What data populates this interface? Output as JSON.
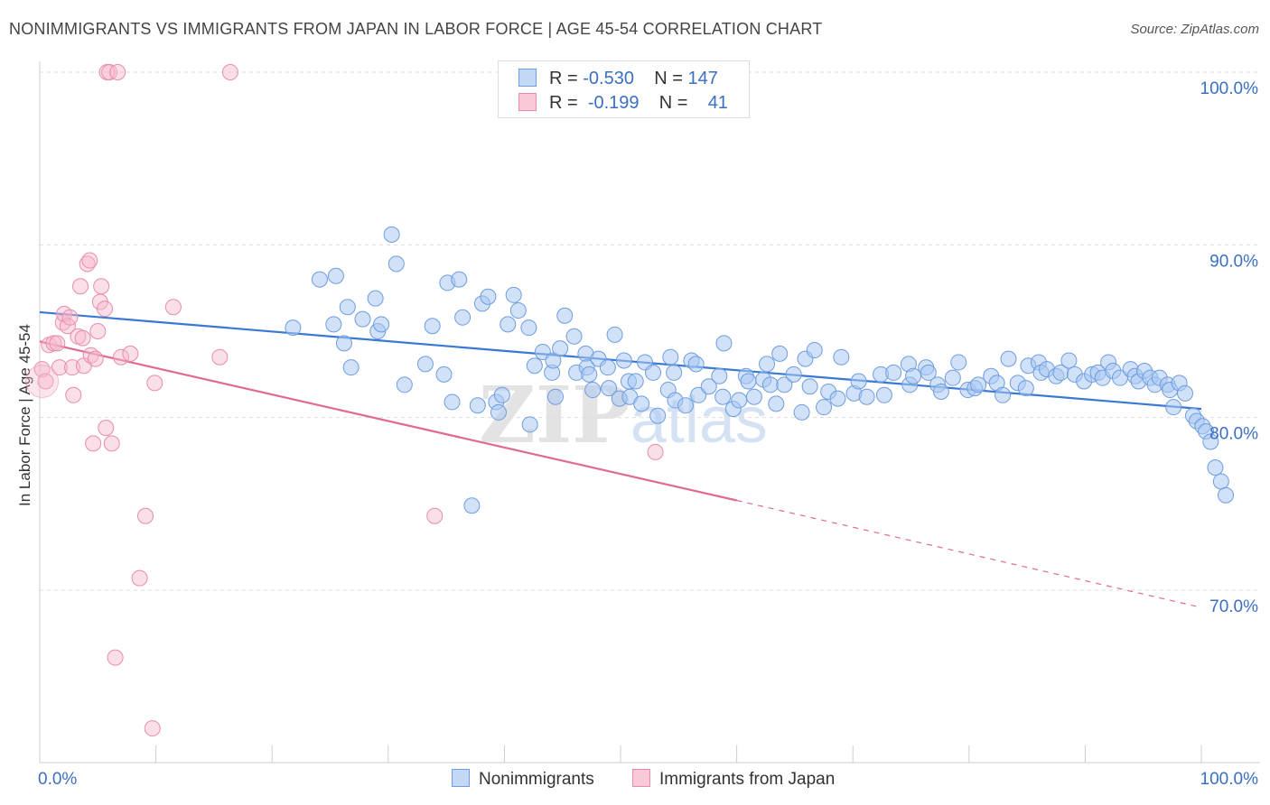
{
  "title": "NONIMMIGRANTS VS IMMIGRANTS FROM JAPAN IN LABOR FORCE | AGE 45-54 CORRELATION CHART",
  "source": "Source: ZipAtlas.com",
  "colors": {
    "blue": "#3a78d6",
    "blue_fill": "#a9c8f2",
    "pink": "#e06a93",
    "pink_fill": "#f6b8cb",
    "axis_label": "#3a6fc4"
  },
  "legend_top": {
    "rows": [
      {
        "r_label": "R =",
        "r_value": "-0.530",
        "n_label": "N =",
        "n_value": "147"
      },
      {
        "r_label": "R =",
        "r_value": "-0.199",
        "n_label": "N =",
        "n_value": "41"
      }
    ]
  },
  "legend_bottom": {
    "series1": "Nonimmigrants",
    "series2": "Immigrants from Japan"
  },
  "chart_data": {
    "type": "scatter",
    "title": "NONIMMIGRANTS VS IMMIGRANTS FROM JAPAN IN LABOR FORCE | AGE 45-54 CORRELATION CHART",
    "xlabel": "",
    "ylabel": "In Labor Force | Age 45-54",
    "xlim": [
      0,
      100
    ],
    "ylim": [
      60,
      100
    ],
    "x_tick_labels": [
      "0.0%",
      "100.0%"
    ],
    "y_tick_labels": [
      "100.0%",
      "90.0%",
      "80.0%",
      "70.0%"
    ],
    "y_ticks": [
      100,
      90,
      80,
      70
    ],
    "watermark": "ZIPatlas",
    "series": [
      {
        "name": "Nonimmigrants",
        "color": "#3a78d6",
        "trend": {
          "x0": 0,
          "y0": 86.1,
          "x1": 100,
          "y1": 80.5
        },
        "points": [
          [
            21.8,
            85.2
          ],
          [
            24.1,
            88.0
          ],
          [
            25.3,
            85.4
          ],
          [
            25.5,
            88.2
          ],
          [
            26.2,
            84.3
          ],
          [
            26.5,
            86.4
          ],
          [
            26.8,
            82.9
          ],
          [
            27.8,
            85.7
          ],
          [
            28.9,
            86.9
          ],
          [
            29.1,
            85.0
          ],
          [
            29.4,
            85.4
          ],
          [
            30.3,
            90.6
          ],
          [
            30.7,
            88.9
          ],
          [
            31.4,
            81.9
          ],
          [
            33.2,
            83.1
          ],
          [
            33.8,
            85.3
          ],
          [
            34.8,
            82.5
          ],
          [
            35.1,
            87.8
          ],
          [
            35.5,
            80.9
          ],
          [
            36.1,
            88.0
          ],
          [
            36.4,
            85.8
          ],
          [
            37.7,
            80.7
          ],
          [
            38.1,
            86.6
          ],
          [
            38.6,
            87.0
          ],
          [
            39.3,
            80.9
          ],
          [
            39.5,
            80.3
          ],
          [
            39.8,
            81.3
          ],
          [
            40.3,
            85.4
          ],
          [
            40.8,
            87.1
          ],
          [
            41.2,
            86.2
          ],
          [
            42.1,
            85.2
          ],
          [
            42.2,
            79.6
          ],
          [
            42.6,
            83.0
          ],
          [
            43.3,
            83.8
          ],
          [
            44.1,
            82.6
          ],
          [
            44.2,
            83.3
          ],
          [
            44.4,
            81.2
          ],
          [
            44.8,
            84.0
          ],
          [
            45.2,
            85.9
          ],
          [
            46.0,
            84.7
          ],
          [
            46.2,
            82.6
          ],
          [
            47.0,
            83.7
          ],
          [
            47.1,
            82.9
          ],
          [
            47.3,
            82.5
          ],
          [
            47.6,
            81.6
          ],
          [
            48.1,
            83.4
          ],
          [
            48.9,
            82.9
          ],
          [
            49.0,
            81.7
          ],
          [
            49.5,
            84.8
          ],
          [
            49.9,
            81.1
          ],
          [
            50.3,
            83.3
          ],
          [
            50.7,
            82.1
          ],
          [
            50.8,
            81.2
          ],
          [
            51.3,
            82.1
          ],
          [
            51.8,
            80.8
          ],
          [
            52.1,
            83.2
          ],
          [
            52.8,
            82.6
          ],
          [
            53.2,
            80.1
          ],
          [
            54.1,
            81.6
          ],
          [
            54.3,
            83.5
          ],
          [
            54.6,
            82.6
          ],
          [
            54.7,
            81.0
          ],
          [
            55.6,
            80.7
          ],
          [
            56.1,
            83.3
          ],
          [
            56.5,
            83.1
          ],
          [
            56.7,
            81.3
          ],
          [
            57.6,
            81.8
          ],
          [
            58.5,
            82.4
          ],
          [
            58.8,
            81.2
          ],
          [
            59.7,
            80.5
          ],
          [
            60.2,
            81.0
          ],
          [
            60.8,
            82.4
          ],
          [
            61.0,
            82.1
          ],
          [
            61.5,
            81.2
          ],
          [
            62.3,
            82.2
          ],
          [
            62.6,
            83.1
          ],
          [
            62.9,
            81.9
          ],
          [
            63.4,
            80.8
          ],
          [
            63.7,
            83.7
          ],
          [
            64.1,
            81.9
          ],
          [
            64.9,
            82.5
          ],
          [
            65.6,
            80.3
          ],
          [
            65.9,
            83.4
          ],
          [
            66.3,
            81.8
          ],
          [
            66.7,
            83.9
          ],
          [
            67.5,
            80.6
          ],
          [
            67.9,
            81.5
          ],
          [
            68.7,
            81.1
          ],
          [
            69.0,
            83.5
          ],
          [
            70.1,
            81.4
          ],
          [
            70.5,
            82.1
          ],
          [
            71.2,
            81.2
          ],
          [
            72.4,
            82.5
          ],
          [
            72.7,
            81.3
          ],
          [
            73.5,
            82.6
          ],
          [
            74.8,
            83.1
          ],
          [
            74.9,
            81.9
          ],
          [
            75.2,
            82.4
          ],
          [
            76.3,
            82.9
          ],
          [
            76.5,
            82.6
          ],
          [
            77.3,
            81.9
          ],
          [
            77.6,
            81.5
          ],
          [
            78.6,
            82.3
          ],
          [
            79.1,
            83.2
          ],
          [
            79.9,
            81.6
          ],
          [
            80.5,
            81.7
          ],
          [
            80.8,
            81.9
          ],
          [
            81.9,
            82.4
          ],
          [
            82.4,
            82.0
          ],
          [
            82.9,
            81.3
          ],
          [
            83.4,
            83.4
          ],
          [
            84.2,
            82.0
          ],
          [
            84.9,
            81.7
          ],
          [
            85.1,
            83.0
          ],
          [
            86.0,
            83.2
          ],
          [
            86.2,
            82.6
          ],
          [
            86.7,
            82.8
          ],
          [
            87.5,
            82.4
          ],
          [
            87.9,
            82.6
          ],
          [
            88.6,
            83.3
          ],
          [
            89.1,
            82.5
          ],
          [
            89.9,
            82.1
          ],
          [
            90.6,
            82.5
          ],
          [
            91.1,
            82.6
          ],
          [
            91.5,
            82.3
          ],
          [
            92.0,
            83.2
          ],
          [
            92.4,
            82.7
          ],
          [
            93.0,
            82.3
          ],
          [
            93.9,
            82.8
          ],
          [
            94.3,
            82.4
          ],
          [
            94.6,
            82.1
          ],
          [
            95.1,
            82.7
          ],
          [
            95.6,
            82.3
          ],
          [
            96.0,
            81.9
          ],
          [
            96.4,
            82.3
          ],
          [
            97.1,
            81.9
          ],
          [
            97.3,
            81.6
          ],
          [
            97.6,
            80.6
          ],
          [
            98.1,
            82.0
          ],
          [
            98.6,
            81.4
          ],
          [
            99.3,
            80.1
          ],
          [
            99.6,
            79.8
          ],
          [
            100.1,
            79.5
          ],
          [
            100.4,
            79.2
          ],
          [
            100.8,
            78.6
          ],
          [
            101.2,
            77.1
          ],
          [
            101.7,
            76.3
          ],
          [
            102.1,
            75.5
          ],
          [
            37.2,
            74.9
          ],
          [
            58.9,
            84.3
          ]
        ]
      },
      {
        "name": "Immigrants from Japan",
        "color": "#e06a93",
        "trend": {
          "x0": 0,
          "y0": 84.4,
          "x1": 60,
          "y1": 75.2
        },
        "trend_dashed_to": {
          "x": 100,
          "y": 69.0
        },
        "points": [
          [
            0.2,
            82.8
          ],
          [
            0.5,
            82.1
          ],
          [
            0.8,
            84.2
          ],
          [
            1.2,
            84.3
          ],
          [
            1.5,
            84.3
          ],
          [
            1.7,
            82.9
          ],
          [
            2.0,
            85.5
          ],
          [
            2.1,
            86.0
          ],
          [
            2.4,
            85.3
          ],
          [
            2.6,
            85.8
          ],
          [
            2.8,
            82.9
          ],
          [
            2.9,
            81.3
          ],
          [
            3.3,
            84.7
          ],
          [
            3.5,
            87.6
          ],
          [
            3.7,
            84.6
          ],
          [
            3.8,
            83.0
          ],
          [
            4.1,
            88.9
          ],
          [
            4.3,
            89.1
          ],
          [
            4.4,
            83.6
          ],
          [
            4.6,
            78.5
          ],
          [
            4.8,
            83.4
          ],
          [
            5.0,
            85.0
          ],
          [
            5.2,
            86.7
          ],
          [
            5.3,
            87.6
          ],
          [
            5.6,
            86.3
          ],
          [
            5.7,
            79.4
          ],
          [
            5.8,
            100.0
          ],
          [
            6.0,
            100.0
          ],
          [
            6.2,
            78.5
          ],
          [
            6.5,
            66.1
          ],
          [
            6.7,
            100.0
          ],
          [
            7.0,
            83.5
          ],
          [
            7.8,
            83.7
          ],
          [
            8.6,
            70.7
          ],
          [
            9.1,
            74.3
          ],
          [
            9.7,
            62.0
          ],
          [
            9.9,
            82.0
          ],
          [
            11.5,
            86.4
          ],
          [
            15.5,
            83.5
          ],
          [
            16.4,
            100.0
          ],
          [
            34.0,
            74.3
          ],
          [
            53.0,
            78.0
          ]
        ]
      }
    ]
  }
}
